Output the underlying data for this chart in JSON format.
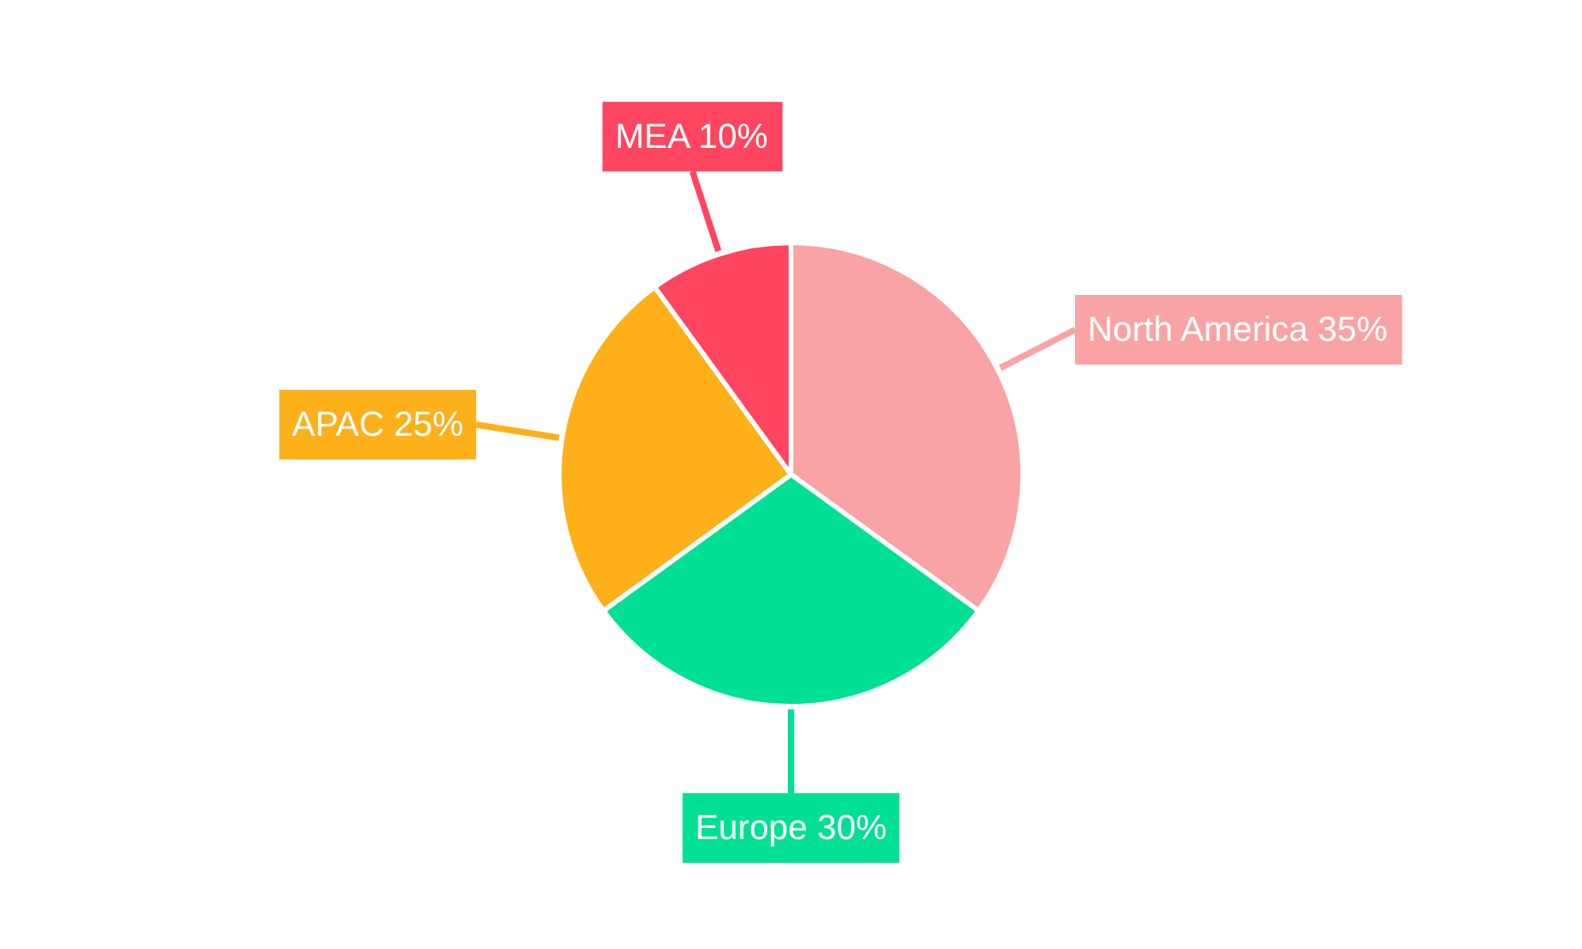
{
  "chart_data": {
    "type": "pie",
    "categories": [
      "North America",
      "Europe",
      "APAC",
      "MEA"
    ],
    "values": [
      35,
      30,
      25,
      10
    ],
    "value_labels": [
      "35%",
      "30%",
      "25%",
      "10%"
    ],
    "colors": [
      "#f9a3a4",
      "#00e094",
      "#fdb01a",
      "#ff4560"
    ],
    "legend": false
  }
}
